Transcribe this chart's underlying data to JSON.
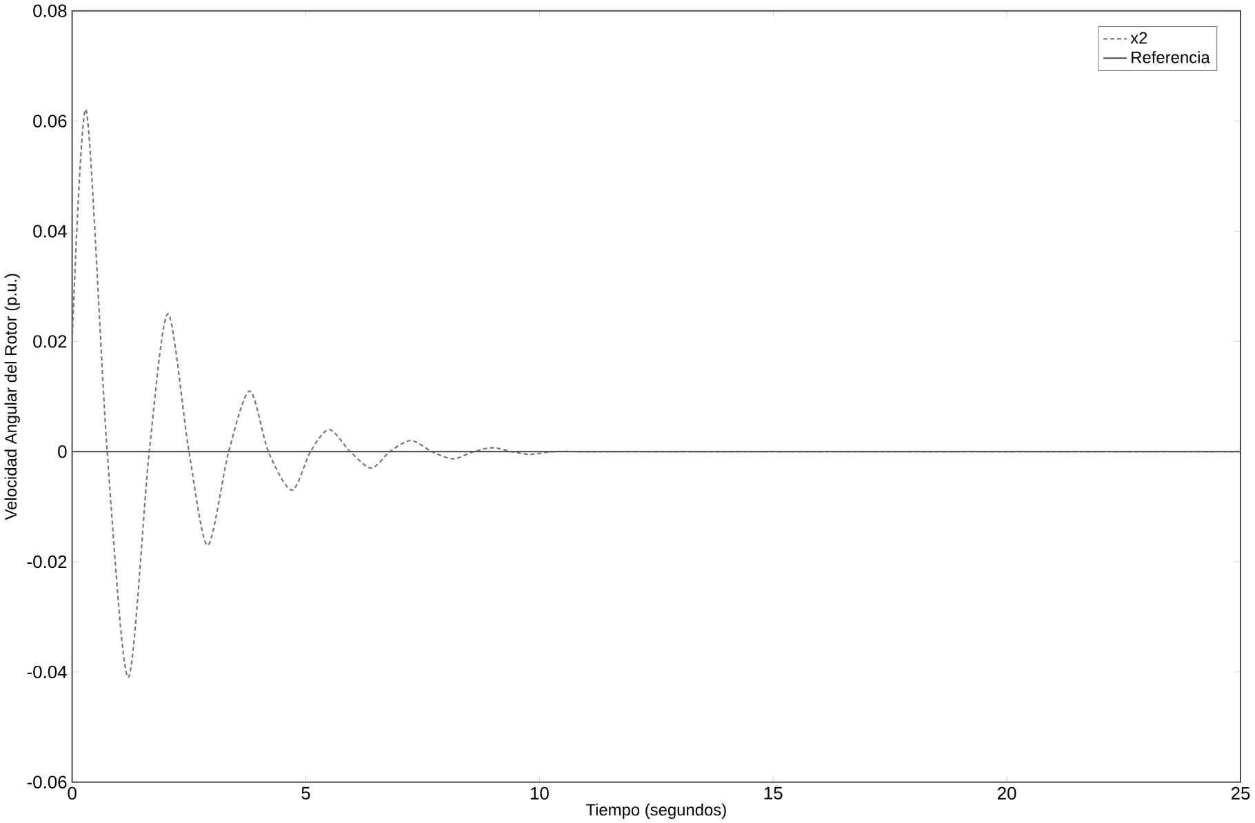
{
  "chart_data": {
    "type": "line",
    "xlabel": "Tiempo (segundos)",
    "ylabel": "Velocidad Angular del Rotor (p.u.)",
    "xlim": [
      0,
      25
    ],
    "ylim": [
      -0.06,
      0.08
    ],
    "xticks": [
      0,
      5,
      10,
      15,
      20,
      25
    ],
    "yticks": [
      -0.06,
      -0.04,
      -0.02,
      0,
      0.02,
      0.04,
      0.06,
      0.08
    ],
    "legend": "top right",
    "grid": false,
    "series": [
      {
        "name": "x2",
        "color": "#777777",
        "line_style": "dashed",
        "x": [
          0,
          0.3,
          0.75,
          1.2,
          1.65,
          2.05,
          2.5,
          2.9,
          3.35,
          3.8,
          4.2,
          4.7,
          5.1,
          5.5,
          5.95,
          6.4,
          6.8,
          7.25,
          7.7,
          8.15,
          8.6,
          9.0,
          9.4,
          9.8,
          10.3,
          11,
          12,
          14,
          25
        ],
        "values": [
          0.02,
          0.062,
          0,
          -0.041,
          0,
          0.025,
          0,
          -0.017,
          0,
          0.011,
          0,
          -0.007,
          0,
          0.004,
          0,
          -0.003,
          0,
          0.002,
          0,
          -0.0013,
          0,
          0.0007,
          0,
          -0.0005,
          0,
          0,
          0,
          0,
          0
        ]
      },
      {
        "name": "Referencia",
        "color": "#4a5a55",
        "line_style": "solid",
        "x": [
          0,
          25
        ],
        "values": [
          0,
          0
        ]
      }
    ]
  }
}
